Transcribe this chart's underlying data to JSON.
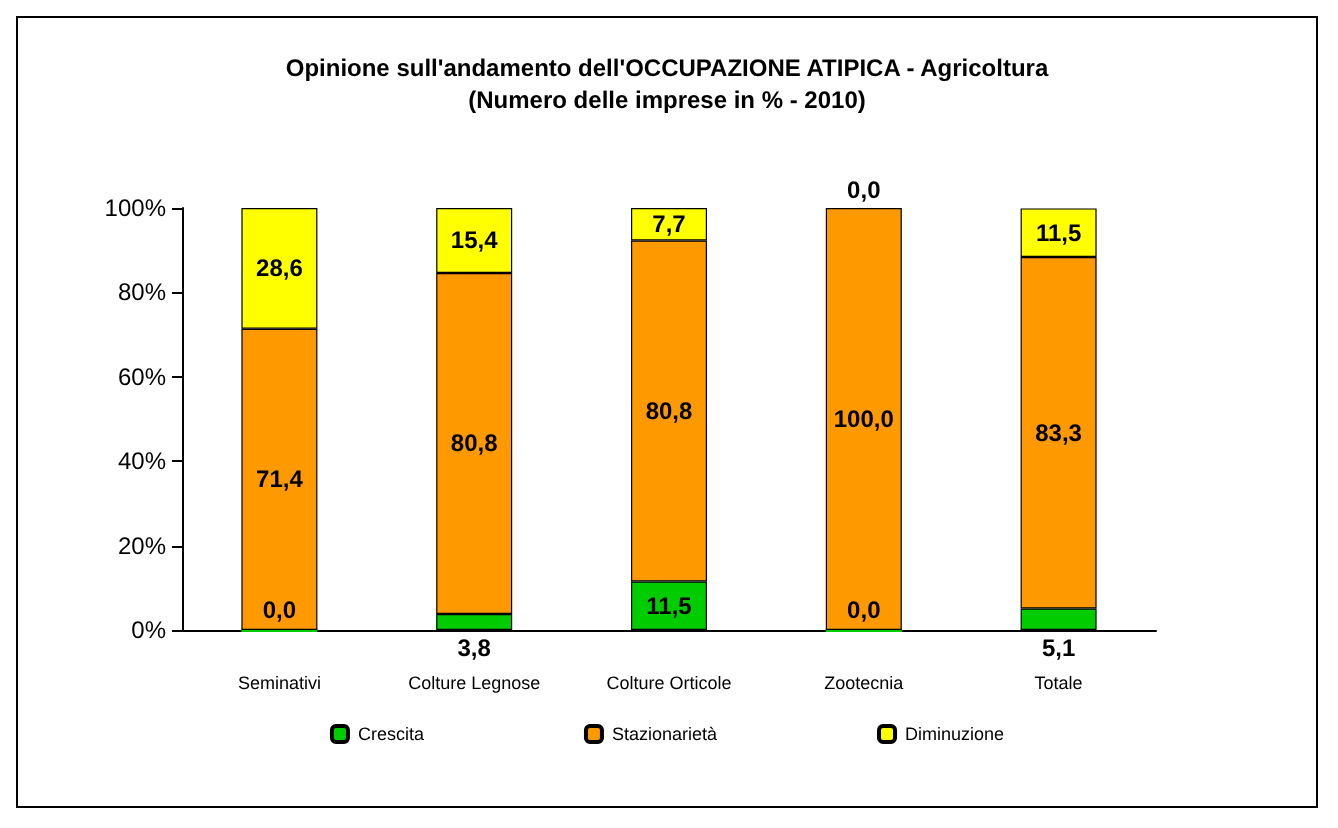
{
  "chart_data": {
    "type": "bar",
    "stacked": true,
    "title": "Opinione sull'andamento dell'OCCUPAZIONE ATIPICA - Agricoltura",
    "subtitle": "(Numero delle imprese in % - 2010)",
    "categories": [
      "Seminativi",
      "Colture Legnose",
      "Colture Orticole",
      "Zootecnia",
      "Totale"
    ],
    "series": [
      {
        "name": "Crescita",
        "color": "#00cc00",
        "values": [
          0,
          3.8,
          11.5,
          0,
          5.1
        ],
        "value_labels": [
          "0,0",
          "3,8",
          "11,5",
          "0,0",
          "5,1"
        ]
      },
      {
        "name": "Stazionarietà",
        "color": "#ff9900",
        "values": [
          71.4,
          80.8,
          80.8,
          100,
          83.3
        ],
        "value_labels": [
          "71,4",
          "80,8",
          "80,8",
          "100,0",
          "83,3"
        ]
      },
      {
        "name": "Diminuzione",
        "color": "#ffff00",
        "values": [
          28.6,
          15.4,
          7.7,
          0,
          11.5
        ],
        "value_labels": [
          "28,6",
          "15,4",
          "7,7",
          "0,0",
          "11,5"
        ]
      }
    ],
    "ylim": [
      0,
      100
    ],
    "yticks": [
      {
        "value": 0,
        "label": "0%"
      },
      {
        "value": 20,
        "label": "20%"
      },
      {
        "value": 40,
        "label": "40%"
      },
      {
        "value": 60,
        "label": "60%"
      },
      {
        "value": 80,
        "label": "80%"
      },
      {
        "value": 100,
        "label": "100%"
      }
    ],
    "grid": false,
    "legend": "bottom"
  }
}
